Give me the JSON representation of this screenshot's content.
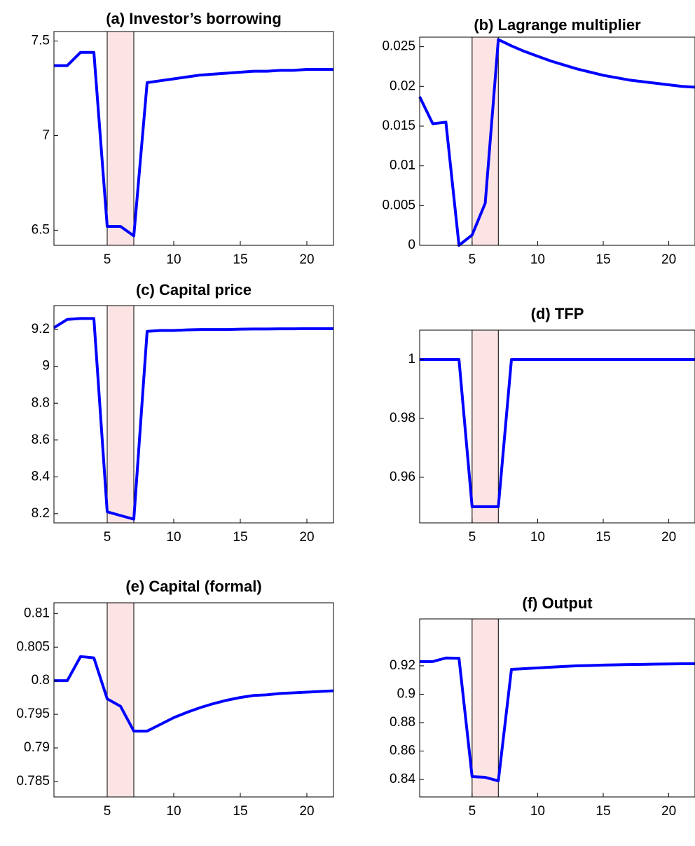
{
  "chart_data": [
    {
      "type": "line",
      "title": "(a) Investor’s borrowing",
      "x": [
        1,
        2,
        3,
        4,
        5,
        6,
        7,
        8,
        9,
        10,
        11,
        12,
        13,
        14,
        15,
        16,
        17,
        18,
        19,
        20,
        21,
        22
      ],
      "series": [
        {
          "color": "#0000ff",
          "values": [
            7.37,
            7.37,
            7.44,
            7.44,
            6.52,
            6.52,
            6.47,
            7.28,
            7.29,
            7.3,
            7.31,
            7.32,
            7.325,
            7.33,
            7.335,
            7.34,
            7.34,
            7.345,
            7.345,
            7.35,
            7.35,
            7.35
          ]
        }
      ],
      "xlim": [
        1,
        22
      ],
      "xticks": [
        5,
        10,
        15,
        20
      ],
      "ylim": [
        6.42,
        7.55
      ],
      "yticks": [
        6.5,
        7,
        7.5
      ],
      "shaded_region": [
        5,
        7
      ],
      "shade_color": "#fde4e4",
      "grid": false
    },
    {
      "type": "line",
      "title": "(b) Lagrange multiplier",
      "x": [
        1,
        2,
        3,
        4,
        5,
        6,
        7,
        8,
        9,
        10,
        11,
        12,
        13,
        14,
        15,
        16,
        17,
        18,
        19,
        20,
        21,
        22
      ],
      "series": [
        {
          "color": "#0000ff",
          "values": [
            0.0187,
            0.0153,
            0.0155,
            0,
            0.0013,
            0.0053,
            0.0259,
            0.0251,
            0.0244,
            0.0238,
            0.0232,
            0.0227,
            0.0222,
            0.0218,
            0.0214,
            0.0211,
            0.0208,
            0.0206,
            0.0204,
            0.0202,
            0.02,
            0.0199
          ]
        }
      ],
      "xlim": [
        1,
        22
      ],
      "xticks": [
        5,
        10,
        15,
        20
      ],
      "ylim": [
        0,
        0.0262
      ],
      "yticks": [
        0,
        0.005,
        0.01,
        0.015,
        0.02,
        0.025
      ],
      "shaded_region": [
        5,
        7
      ],
      "shade_color": "#fde4e4",
      "grid": false
    },
    {
      "type": "line",
      "title": "(c) Capital price",
      "x": [
        1,
        2,
        3,
        4,
        5,
        6,
        7,
        8,
        9,
        10,
        11,
        12,
        13,
        14,
        15,
        16,
        17,
        18,
        19,
        20,
        21,
        22
      ],
      "series": [
        {
          "color": "#0000ff",
          "values": [
            9.21,
            9.255,
            9.26,
            9.26,
            8.21,
            8.19,
            8.17,
            9.19,
            9.195,
            9.195,
            9.198,
            9.2,
            9.2,
            9.2,
            9.202,
            9.203,
            9.203,
            9.204,
            9.204,
            9.205,
            9.205,
            9.205
          ]
        }
      ],
      "xlim": [
        1,
        22
      ],
      "xticks": [
        5,
        10,
        15,
        20
      ],
      "ylim": [
        8.15,
        9.33
      ],
      "yticks": [
        8.2,
        8.4,
        8.6,
        8.8,
        9,
        9.2
      ],
      "shaded_region": [
        5,
        7
      ],
      "shade_color": "#fde4e4",
      "grid": false
    },
    {
      "type": "line",
      "title": "(d) TFP",
      "x": [
        1,
        2,
        3,
        4,
        5,
        6,
        7,
        8,
        9,
        10,
        11,
        12,
        13,
        14,
        15,
        16,
        17,
        18,
        19,
        20,
        21,
        22
      ],
      "series": [
        {
          "color": "#0000ff",
          "values": [
            1,
            1,
            1,
            1,
            0.95,
            0.95,
            0.95,
            1,
            1,
            1,
            1,
            1,
            1,
            1,
            1,
            1,
            1,
            1,
            1,
            1,
            1,
            1
          ]
        }
      ],
      "xlim": [
        1,
        22
      ],
      "xticks": [
        5,
        10,
        15,
        20
      ],
      "ylim": [
        0.9445,
        1.01
      ],
      "yticks": [
        0.96,
        0.98,
        1
      ],
      "shaded_region": [
        5,
        7
      ],
      "shade_color": "#fde4e4",
      "grid": false
    },
    {
      "type": "line",
      "title": "(e) Capital (formal)",
      "x": [
        1,
        2,
        3,
        4,
        5,
        6,
        7,
        8,
        9,
        10,
        11,
        12,
        13,
        14,
        15,
        16,
        17,
        18,
        19,
        20,
        21,
        22
      ],
      "series": [
        {
          "color": "#0000ff",
          "values": [
            0.8,
            0.8,
            0.8036,
            0.8034,
            0.7973,
            0.7962,
            0.7925,
            0.7925,
            0.7935,
            0.7945,
            0.7953,
            0.796,
            0.7966,
            0.7971,
            0.7975,
            0.7978,
            0.7979,
            0.7981,
            0.7982,
            0.7983,
            0.7984,
            0.7985
          ]
        }
      ],
      "xlim": [
        1,
        22
      ],
      "xticks": [
        5,
        10,
        15,
        20
      ],
      "ylim": [
        0.7827,
        0.8116
      ],
      "yticks": [
        0.785,
        0.79,
        0.795,
        0.8,
        0.805,
        0.81
      ],
      "shaded_region": [
        5,
        7
      ],
      "shade_color": "#fde4e4",
      "grid": false
    },
    {
      "type": "line",
      "title": "(f) Output",
      "x": [
        1,
        2,
        3,
        4,
        5,
        6,
        7,
        8,
        9,
        10,
        11,
        12,
        13,
        14,
        15,
        16,
        17,
        18,
        19,
        20,
        21,
        22
      ],
      "series": [
        {
          "color": "#0000ff",
          "values": [
            0.923,
            0.923,
            0.9255,
            0.9253,
            0.842,
            0.8415,
            0.839,
            0.9175,
            0.918,
            0.9185,
            0.919,
            0.9195,
            0.92,
            0.9202,
            0.9205,
            0.9207,
            0.9209,
            0.921,
            0.9212,
            0.9213,
            0.9214,
            0.9215
          ]
        }
      ],
      "xlim": [
        1,
        22
      ],
      "xticks": [
        5,
        10,
        15,
        20
      ],
      "ylim": [
        0.8277,
        0.953
      ],
      "yticks": [
        0.84,
        0.86,
        0.88,
        0.9,
        0.92
      ],
      "shaded_region": [
        5,
        7
      ],
      "shade_color": "#fde4e4",
      "grid": false
    }
  ]
}
